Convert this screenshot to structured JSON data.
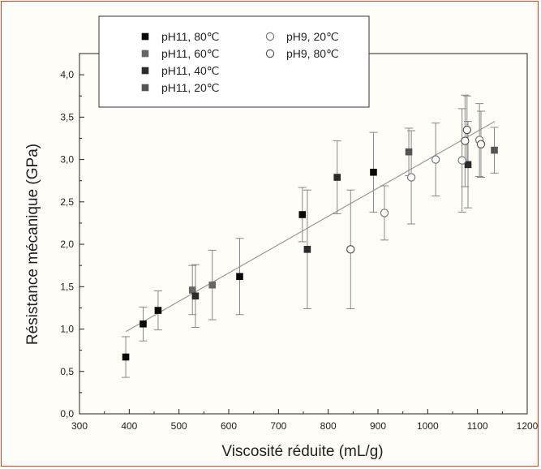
{
  "chart_data": {
    "type": "scatter",
    "xlabel": "Viscosité réduite (mL/g)",
    "ylabel": "Résistance mécanique (GPa)",
    "xlim": [
      300,
      1200
    ],
    "ylim": [
      0,
      4.25
    ],
    "xticks": [
      "300",
      "400",
      "500",
      "600",
      "700",
      "800",
      "900",
      "1000",
      "1100",
      "1200"
    ],
    "yticks": [
      "0,0",
      "0,5",
      "1,0",
      "1,5",
      "2,0",
      "2,5",
      "3,0",
      "3,5",
      "4,0"
    ],
    "grid": false,
    "legend_position": "top-left",
    "fit_line": {
      "x": [
        393,
        1135
      ],
      "y": [
        0.97,
        3.45
      ],
      "color": "#a0a0a0"
    },
    "series": [
      {
        "name": "pH11, 80℃",
        "marker": "square-filled",
        "color": "#0a0a0a",
        "points": [
          {
            "x": 393,
            "y": 0.67,
            "lo": 0.43,
            "hi": 0.91
          },
          {
            "x": 428,
            "y": 1.06,
            "lo": 0.86,
            "hi": 1.26
          },
          {
            "x": 458,
            "y": 1.22,
            "lo": 0.99,
            "hi": 1.45
          },
          {
            "x": 622,
            "y": 1.62,
            "lo": 1.17,
            "hi": 2.07
          },
          {
            "x": 748,
            "y": 2.35,
            "lo": 2.03,
            "hi": 2.67
          },
          {
            "x": 891,
            "y": 2.85,
            "lo": 2.38,
            "hi": 3.32
          }
        ]
      },
      {
        "name": "pH11, 60℃",
        "marker": "square-filled",
        "color": "#666666",
        "points": [
          {
            "x": 527,
            "y": 1.46,
            "lo": 1.17,
            "hi": 1.75
          },
          {
            "x": 567,
            "y": 1.52,
            "lo": 1.11,
            "hi": 1.93
          }
        ]
      },
      {
        "name": "pH11, 40℃",
        "marker": "square-filled",
        "color": "#2b2b2b",
        "points": [
          {
            "x": 533,
            "y": 1.39,
            "lo": 1.02,
            "hi": 1.76
          },
          {
            "x": 758,
            "y": 1.94,
            "lo": 1.24,
            "hi": 2.64
          },
          {
            "x": 818,
            "y": 2.79,
            "lo": 2.36,
            "hi": 3.22
          },
          {
            "x": 1081,
            "y": 2.94,
            "lo": 2.43,
            "hi": 3.45
          }
        ]
      },
      {
        "name": "pH11, 20℃",
        "marker": "square-filled",
        "color": "#555555",
        "points": [
          {
            "x": 962,
            "y": 3.09,
            "lo": 2.81,
            "hi": 3.37
          },
          {
            "x": 1134,
            "y": 3.11,
            "lo": 2.84,
            "hi": 3.38
          }
        ]
      },
      {
        "name": "pH9, 20℃",
        "marker": "circle-open",
        "color": "#777777",
        "points": [
          {
            "x": 913,
            "y": 2.37,
            "lo": 2.05,
            "hi": 2.69
          },
          {
            "x": 967,
            "y": 2.79,
            "lo": 2.24,
            "hi": 3.34
          },
          {
            "x": 1016,
            "y": 3.0,
            "lo": 2.57,
            "hi": 3.43
          },
          {
            "x": 1069,
            "y": 2.99,
            "lo": 2.38,
            "hi": 3.6
          },
          {
            "x": 1104,
            "y": 3.23,
            "lo": 2.8,
            "hi": 3.66
          }
        ]
      },
      {
        "name": "pH9, 80℃",
        "marker": "circle-open",
        "color": "#555555",
        "points": [
          {
            "x": 845,
            "y": 1.94,
            "lo": 1.24,
            "hi": 2.64
          },
          {
            "x": 1075,
            "y": 3.22,
            "lo": 2.68,
            "hi": 3.76
          },
          {
            "x": 1079,
            "y": 3.35,
            "lo": 2.95,
            "hi": 3.75
          },
          {
            "x": 1107,
            "y": 3.18,
            "lo": 2.79,
            "hi": 3.57
          }
        ]
      }
    ]
  }
}
